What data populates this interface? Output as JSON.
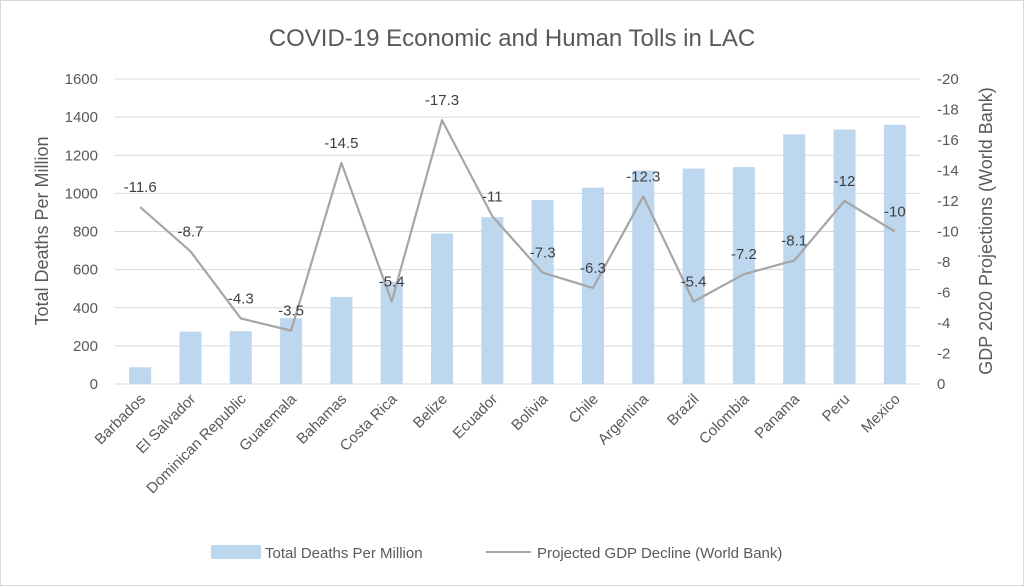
{
  "chart_data": {
    "type": "bar",
    "title": "COVID-19 Economic and Human Tolls in LAC",
    "categories": [
      "Barbados",
      "El Salvador",
      "Dominican Republic",
      "Guatemala",
      "Bahamas",
      "Costa Rica",
      "Belize",
      "Ecuador",
      "Bolivia",
      "Chile",
      "Argentina",
      "Brazil",
      "Colombia",
      "Panama",
      "Peru",
      "Mexico"
    ],
    "series": [
      {
        "name": "Total Deaths Per Million",
        "type": "bar",
        "axis": "left",
        "color": "#bdd7ee",
        "values": [
          88,
          275,
          277,
          345,
          457,
          535,
          790,
          875,
          965,
          1030,
          1120,
          1130,
          1138,
          1310,
          1335,
          1360
        ]
      },
      {
        "name": "Projected GDP Decline (World Bank)",
        "type": "line",
        "axis": "right",
        "color": "#a6a6a6",
        "values": [
          -11.6,
          -8.7,
          -4.3,
          -3.5,
          -14.5,
          -5.4,
          -17.3,
          -11,
          -7.3,
          -6.3,
          -12.3,
          -5.4,
          -7.2,
          -8.1,
          -12,
          -10
        ],
        "labels": [
          "-11.6",
          "-8.7",
          "-4.3",
          "-3.5",
          "-14.5",
          "-5.4",
          "-17.3",
          "-11",
          "-7.3",
          "-6.3",
          "-12.3",
          "-5.4",
          "-7.2",
          "-8.1",
          "-12",
          "-10"
        ]
      }
    ],
    "ylabel": "Total Deaths Per Million",
    "y2label": "GDP 2020 Projections  (World Bank)",
    "ylim": [
      0,
      1600
    ],
    "y_ticks": [
      "0",
      "200",
      "400",
      "600",
      "800",
      "1000",
      "1200",
      "1400",
      "1600"
    ],
    "y2lim": [
      0,
      -20
    ],
    "y2_reversed": true,
    "y2_ticks": [
      "0",
      "-2",
      "-4",
      "-6",
      "-8",
      "-10",
      "-12",
      "-14",
      "-16",
      "-18",
      "-20"
    ],
    "grid": true,
    "legend_position": "bottom",
    "legend": [
      "Total Deaths Per Million",
      "Projected GDP Decline (World Bank)"
    ]
  }
}
